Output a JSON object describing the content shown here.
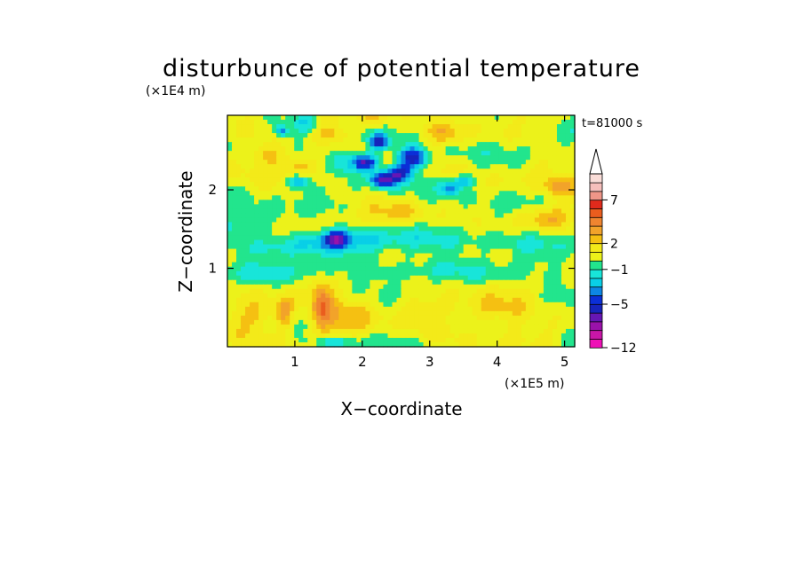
{
  "chart_data": {
    "type": "heatmap",
    "title": "disturbunce of potential temperature",
    "time_label": "t=81000 s",
    "xlabel": "X−coordinate",
    "ylabel": "Z−coordinate",
    "x_unit": "(×1E5 m)",
    "y_unit": "(×1E4 m)",
    "xlim": [
      0,
      5.15
    ],
    "ylim": [
      0,
      2.95
    ],
    "x_ticks": [
      1,
      2,
      3,
      4,
      5
    ],
    "y_ticks": [
      1,
      2
    ],
    "colorbar": {
      "levels": [
        -12,
        -10,
        -8,
        -7,
        -6,
        -5,
        -4,
        -3,
        -2,
        -1,
        0,
        1,
        2,
        3,
        4,
        5,
        6,
        7,
        8,
        9,
        10
      ],
      "colors": [
        "#ee10b6",
        "#c916a7",
        "#9a12aa",
        "#6616b4",
        "#1624bc",
        "#0b2fd7",
        "#0d86e4",
        "#09cfe7",
        "#18e5d9",
        "#22e58d",
        "#ecf21a",
        "#f3ea19",
        "#f5c012",
        "#f2a32a",
        "#ef8530",
        "#ea5d1e",
        "#e02a1c",
        "#f09688",
        "#f6bfbc",
        "#faddd8"
      ],
      "tick_labels": [
        "7",
        "2",
        "−1",
        "−5",
        "−12"
      ],
      "tick_values": [
        7,
        2,
        -1,
        -5,
        -12
      ],
      "extend": "max"
    },
    "features": [
      {
        "x": 0.2,
        "z": 1.58,
        "v": -1.4,
        "sx": 0.45,
        "sz": 0.12
      },
      {
        "x": 0.8,
        "z": 1.25,
        "v": -1.2,
        "sx": 0.35,
        "sz": 0.08
      },
      {
        "x": 1.5,
        "z": 1.35,
        "v": -2.5,
        "sx": 0.5,
        "sz": 0.1
      },
      {
        "x": 2.7,
        "z": 1.38,
        "v": -1.6,
        "sx": 0.8,
        "sz": 0.1
      },
      {
        "x": 4.4,
        "z": 1.35,
        "v": -1.0,
        "sx": 0.5,
        "sz": 0.1
      },
      {
        "x": 2.5,
        "z": 0.95,
        "v": -1.3,
        "sx": 2.0,
        "sz": 0.1
      },
      {
        "x": 0.4,
        "z": 0.92,
        "v": -0.8,
        "sx": 0.6,
        "sz": 0.1
      },
      {
        "x": 1.6,
        "z": 1.38,
        "v": -4.5,
        "sx": 0.12,
        "sz": 0.07
      },
      {
        "x": 1.05,
        "z": 2.1,
        "v": -4.2,
        "sx": 0.12,
        "sz": 0.07
      },
      {
        "x": 1.75,
        "z": 2.35,
        "v": -3.0,
        "sx": 0.15,
        "sz": 0.12
      },
      {
        "x": 2.25,
        "z": 2.6,
        "v": -6.0,
        "sx": 0.09,
        "sz": 0.07
      },
      {
        "x": 2.05,
        "z": 2.35,
        "v": -6.5,
        "sx": 0.13,
        "sz": 0.07
      },
      {
        "x": 2.3,
        "z": 2.13,
        "v": -6.0,
        "sx": 0.13,
        "sz": 0.07
      },
      {
        "x": 2.75,
        "z": 2.4,
        "v": -6.5,
        "sx": 0.16,
        "sz": 0.1
      },
      {
        "x": 2.55,
        "z": 2.2,
        "v": -5.0,
        "sx": 0.12,
        "sz": 0.07
      },
      {
        "x": 3.3,
        "z": 2.02,
        "v": -4.5,
        "sx": 0.1,
        "sz": 0.06
      },
      {
        "x": 3.5,
        "z": 2.12,
        "v": -4.0,
        "sx": 0.1,
        "sz": 0.06
      },
      {
        "x": 0.8,
        "z": 2.75,
        "v": -4.0,
        "sx": 0.07,
        "sz": 0.05
      },
      {
        "x": 1.15,
        "z": 2.85,
        "v": -2.5,
        "sx": 0.15,
        "sz": 0.1
      },
      {
        "x": 1.55,
        "z": 0.06,
        "v": -2.5,
        "sx": 0.25,
        "sz": 0.05
      },
      {
        "x": 0.4,
        "z": 0.4,
        "v": 2.3,
        "sx": 0.3,
        "sz": 0.15
      },
      {
        "x": 1.7,
        "z": 0.45,
        "v": 2.4,
        "sx": 0.35,
        "sz": 0.18
      },
      {
        "x": 4.0,
        "z": 0.45,
        "v": 2.1,
        "sx": 0.4,
        "sz": 0.15
      },
      {
        "x": 3.0,
        "z": 0.5,
        "v": 1.6,
        "sx": 0.3,
        "sz": 0.1
      },
      {
        "x": 1.0,
        "z": 2.3,
        "v": 2.4,
        "sx": 0.22,
        "sz": 0.1
      },
      {
        "x": 0.6,
        "z": 2.45,
        "v": 2.2,
        "sx": 0.2,
        "sz": 0.1
      },
      {
        "x": 1.55,
        "z": 2.7,
        "v": 2.3,
        "sx": 0.2,
        "sz": 0.1
      },
      {
        "x": 2.2,
        "z": 2.9,
        "v": 2.0,
        "sx": 0.15,
        "sz": 0.08
      },
      {
        "x": 3.2,
        "z": 2.7,
        "v": 2.4,
        "sx": 0.22,
        "sz": 0.1
      },
      {
        "x": 4.95,
        "z": 2.05,
        "v": 3.5,
        "sx": 0.18,
        "sz": 0.1
      },
      {
        "x": 4.7,
        "z": 1.65,
        "v": 2.2,
        "sx": 0.25,
        "sz": 0.1
      },
      {
        "x": 2.5,
        "z": 1.7,
        "v": 1.8,
        "sx": 0.3,
        "sz": 0.1
      },
      {
        "x": 1.4,
        "z": 0.55,
        "v": 3.5,
        "sx": 0.1,
        "sz": 0.2
      },
      {
        "x": 0.85,
        "z": 0.45,
        "v": 3.0,
        "sx": 0.08,
        "sz": 0.15
      }
    ]
  }
}
